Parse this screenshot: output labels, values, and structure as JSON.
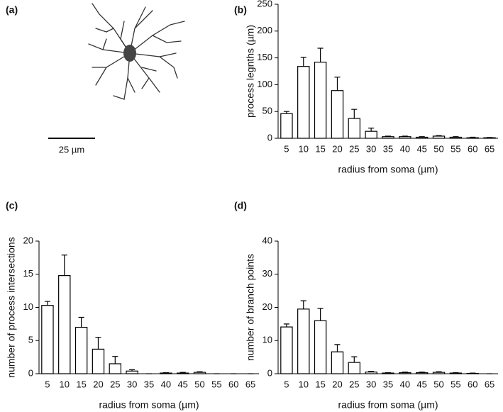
{
  "panel_a": {
    "label": "(a)",
    "scale_bar_label": "25 µm"
  },
  "chart_data": [
    {
      "type": "bar",
      "panel_label": "(b)",
      "x_label": "radius from soma (µm)",
      "y_label": "process legnths (µm)",
      "categories": [
        "5",
        "10",
        "15",
        "20",
        "25",
        "30",
        "35",
        "40",
        "45",
        "50",
        "55",
        "60",
        "65"
      ],
      "values": [
        46,
        134,
        142,
        89,
        37,
        13,
        3,
        3,
        2,
        4,
        2,
        1,
        1
      ],
      "errors": [
        4,
        17,
        26,
        25,
        17,
        6,
        1,
        1,
        1,
        1,
        1,
        1,
        0.5
      ],
      "ylim": [
        0,
        250
      ],
      "yticks": [
        0,
        50,
        100,
        150,
        200,
        250
      ]
    },
    {
      "type": "bar",
      "panel_label": "(c)",
      "x_label": "radius from soma (µm)",
      "y_label": "number of process intersections",
      "categories": [
        "5",
        "10",
        "15",
        "20",
        "25",
        "30",
        "35",
        "40",
        "45",
        "50",
        "55",
        "60",
        "65"
      ],
      "values": [
        10.3,
        14.8,
        7.0,
        3.7,
        1.5,
        0.4,
        0,
        0.1,
        0.1,
        0.2,
        0,
        0,
        0
      ],
      "errors": [
        0.6,
        3.1,
        1.5,
        1.8,
        1.1,
        0.2,
        0,
        0.05,
        0.1,
        0.1,
        0,
        0,
        0
      ],
      "ylim": [
        0,
        20
      ],
      "yticks": [
        0,
        5,
        10,
        15,
        20
      ]
    },
    {
      "type": "bar",
      "panel_label": "(d)",
      "x_label": "radius from soma (µm)",
      "y_label": "number of branch points",
      "categories": [
        "5",
        "10",
        "15",
        "20",
        "25",
        "30",
        "35",
        "40",
        "45",
        "50",
        "55",
        "60",
        "65"
      ],
      "values": [
        14.1,
        19.5,
        16,
        6.6,
        3.4,
        0.5,
        0.2,
        0.3,
        0.3,
        0.4,
        0.2,
        0.1,
        0
      ],
      "errors": [
        0.9,
        2.5,
        3.7,
        2.2,
        1.7,
        0.2,
        0.1,
        0.2,
        0.2,
        0.2,
        0.1,
        0.1,
        0
      ],
      "ylim": [
        0,
        40
      ],
      "yticks": [
        0,
        10,
        20,
        30,
        40
      ]
    }
  ]
}
